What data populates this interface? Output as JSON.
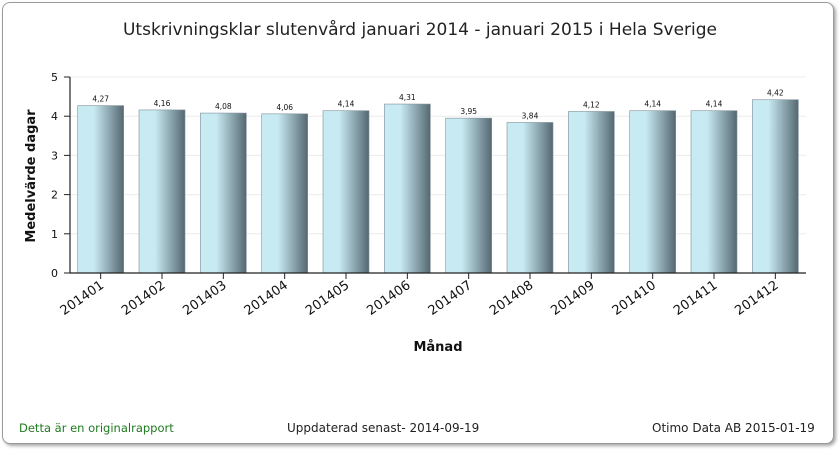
{
  "title": "Utskrivningsklar slutenvård januari 2014 - januari 2015 i Hela Sverige",
  "footer": {
    "left": "Detta är en originalrapport",
    "middle": "Uppdaterad senast- 2014-09-19",
    "right": "Otimo Data AB 2015-01-19"
  },
  "chart_data": {
    "type": "bar",
    "title": "Utskrivningsklar slutenvård januari 2014 - januari 2015 i Hela Sverige",
    "xlabel": "Månad",
    "ylabel": "Medelvärde dagar",
    "ylim": [
      0,
      5
    ],
    "yticks": [
      0,
      1,
      2,
      3,
      4,
      5
    ],
    "categories": [
      "201401",
      "201402",
      "201403",
      "201404",
      "201405",
      "201406",
      "201407",
      "201408",
      "201409",
      "201410",
      "201411",
      "201412"
    ],
    "values": [
      4.27,
      4.16,
      4.08,
      4.06,
      4.14,
      4.31,
      3.95,
      3.84,
      4.12,
      4.14,
      4.14,
      4.42
    ],
    "value_labels": [
      "4,27",
      "4,16",
      "4,08",
      "4,06",
      "4,14",
      "4,31",
      "3,95",
      "3,84",
      "4,12",
      "4,14",
      "4,14",
      "4,42"
    ],
    "grid": true,
    "legend": "none",
    "bar_gradient": [
      "#c8eaf2",
      "#556872"
    ]
  }
}
